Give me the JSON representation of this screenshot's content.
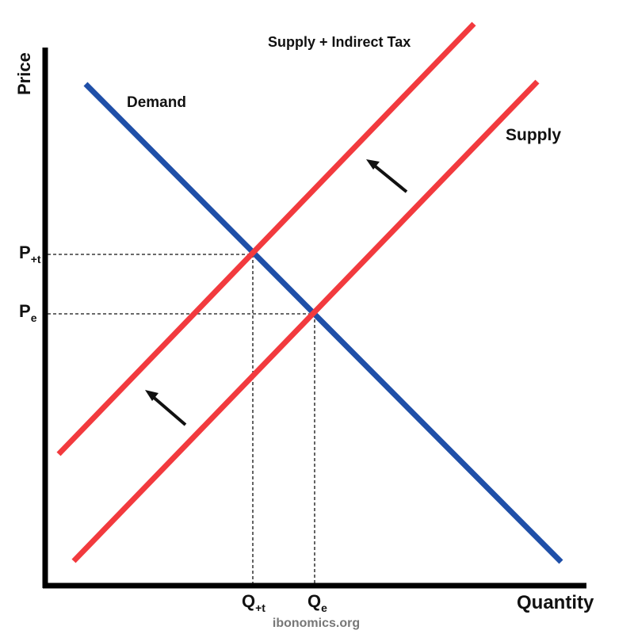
{
  "chart_data": {
    "type": "line",
    "title": "",
    "xlabel": "Quantity",
    "ylabel": "Price",
    "grid": false,
    "ticks": {
      "y": [
        "P+t",
        "Pe"
      ],
      "x": [
        "Q+t",
        "Qe"
      ]
    },
    "y_ticks_display": [
      {
        "main": "P",
        "sub": "+t"
      },
      {
        "main": "P",
        "sub": "e"
      }
    ],
    "x_ticks_display": [
      {
        "main": "Q",
        "sub": "+t"
      },
      {
        "main": "Q",
        "sub": "e"
      }
    ],
    "series": [
      {
        "name": "Demand",
        "color": "#1f4fa8"
      },
      {
        "name": "Supply",
        "color": "#f23a3e"
      },
      {
        "name": "Supply + Indirect Tax",
        "color": "#f23a3e"
      }
    ],
    "annotations": {
      "arrows": "Two arrows showing the supply curve shifting up/left to Supply + Indirect Tax",
      "dashed_guides": "Dashed lines from equilibria to axes at P+t/Q+t and Pe/Qe"
    }
  },
  "watermark": "ibonomics.org"
}
